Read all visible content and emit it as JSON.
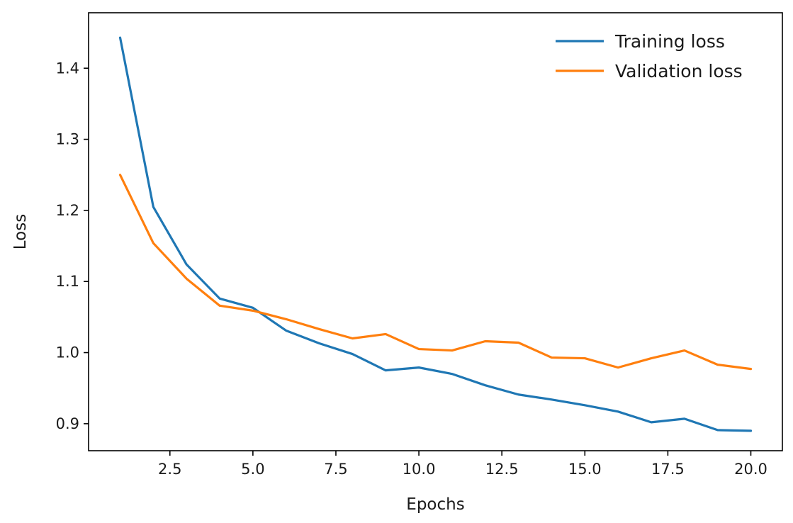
{
  "chart_data": {
    "type": "line",
    "title": "",
    "xlabel": "Epochs",
    "ylabel": "Loss",
    "xlim": [
      0.05,
      20.95
    ],
    "ylim": [
      0.862,
      1.478
    ],
    "xticks": [
      2.5,
      5.0,
      7.5,
      10.0,
      12.5,
      15.0,
      17.5,
      20.0
    ],
    "xtick_labels": [
      "2.5",
      "5.0",
      "7.5",
      "10.0",
      "12.5",
      "15.0",
      "17.5",
      "20.0"
    ],
    "yticks": [
      0.9,
      1.0,
      1.1,
      1.2,
      1.3,
      1.4
    ],
    "ytick_labels": [
      "0.9",
      "1.0",
      "1.1",
      "1.2",
      "1.3",
      "1.4"
    ],
    "grid": false,
    "legend_position": "top-right",
    "x": [
      1,
      2,
      3,
      4,
      5,
      6,
      7,
      8,
      9,
      10,
      11,
      12,
      13,
      14,
      15,
      16,
      17,
      18,
      19,
      20
    ],
    "series": [
      {
        "name": "Training loss",
        "color": "#1f77b4",
        "values": [
          1.443,
          1.205,
          1.124,
          1.076,
          1.063,
          1.031,
          1.013,
          0.998,
          0.975,
          0.979,
          0.97,
          0.954,
          0.941,
          0.934,
          0.926,
          0.917,
          0.902,
          0.907,
          0.891,
          0.89
        ]
      },
      {
        "name": "Validation loss",
        "color": "#ff7f0e",
        "values": [
          1.25,
          1.154,
          1.104,
          1.066,
          1.059,
          1.047,
          1.033,
          1.02,
          1.026,
          1.005,
          1.003,
          1.016,
          1.014,
          0.993,
          0.992,
          0.979,
          0.992,
          1.003,
          0.983,
          0.977
        ]
      }
    ]
  }
}
